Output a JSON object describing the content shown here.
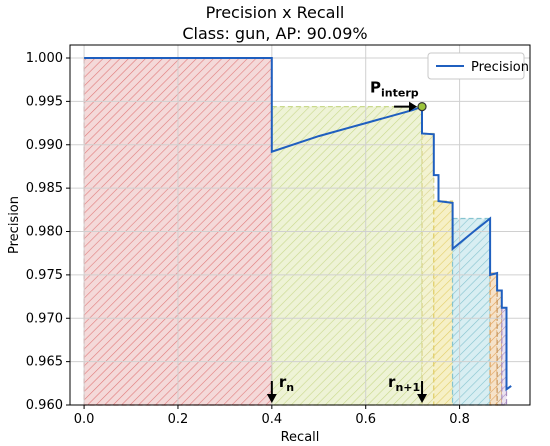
{
  "chart_data": {
    "type": "line",
    "title": "Precision x Recall",
    "subtitle": "Class: gun, AP: 90.09%",
    "xlabel": "Recall",
    "ylabel": "Precision",
    "xlim": [
      -0.03,
      0.95
    ],
    "ylim": [
      0.96,
      1.0015
    ],
    "xticks": [
      0.0,
      0.2,
      0.4,
      0.6,
      0.8
    ],
    "xtick_labels": [
      "0.0",
      "0.2",
      "0.4",
      "0.6",
      "0.8"
    ],
    "yticks": [
      0.96,
      0.965,
      0.97,
      0.975,
      0.98,
      0.985,
      0.99,
      0.995,
      1.0
    ],
    "ytick_labels": [
      "0.960",
      "0.965",
      "0.970",
      "0.975",
      "0.980",
      "0.985",
      "0.990",
      "0.995",
      "1.000"
    ],
    "grid": true,
    "legend_position": "top-right",
    "series": [
      {
        "name": "Precision",
        "color": "#1f5fbf",
        "x": [
          0.0,
          0.4,
          0.4,
          0.5,
          0.6,
          0.7,
          0.72,
          0.72,
          0.745,
          0.745,
          0.755,
          0.755,
          0.785,
          0.785,
          0.83,
          0.865,
          0.865,
          0.88,
          0.88,
          0.89,
          0.89,
          0.9,
          0.9,
          0.91
        ],
        "y": [
          1.0,
          1.0,
          0.9892,
          0.991,
          0.9925,
          0.994,
          0.9944,
          0.9913,
          0.9912,
          0.9865,
          0.9865,
          0.9835,
          0.9833,
          0.978,
          0.98,
          0.9815,
          0.975,
          0.9752,
          0.9732,
          0.9732,
          0.9712,
          0.9712,
          0.9618,
          0.9622
        ]
      }
    ],
    "interpolated_regions": [
      {
        "x0": 0.0,
        "x1": 0.4,
        "y": 1.0,
        "fill": "#f4d9d9",
        "hatch": "#e07a7a"
      },
      {
        "x0": 0.4,
        "x1": 0.72,
        "y": 0.9944,
        "fill": "#eef3d6",
        "hatch": "#c9d98c"
      },
      {
        "x0": 0.72,
        "x1": 0.745,
        "y": 0.9913,
        "fill": "#f3f3d2",
        "hatch": "#d8d48c"
      },
      {
        "x0": 0.745,
        "x1": 0.785,
        "y": 0.9835,
        "fill": "#f6f0c6",
        "hatch": "#e2cf6a"
      },
      {
        "x0": 0.785,
        "x1": 0.865,
        "y": 0.9815,
        "fill": "#d8eef2",
        "hatch": "#86c4cf"
      },
      {
        "x0": 0.865,
        "x1": 0.88,
        "y": 0.9752,
        "fill": "#f6e2c9",
        "hatch": "#e0a25a"
      },
      {
        "x0": 0.88,
        "x1": 0.89,
        "y": 0.9732,
        "fill": "#f1e6d6",
        "hatch": "#c9955a"
      },
      {
        "x0": 0.89,
        "x1": 0.9,
        "y": 0.9712,
        "fill": "#ece3f0",
        "hatch": "#a78cc0"
      }
    ],
    "annotations": {
      "p_interp": {
        "main": "P",
        "sub": "interp",
        "x": 0.72,
        "y": 0.9944
      },
      "r_n": {
        "main": "r",
        "sub": "n",
        "x": 0.4
      },
      "r_n1": {
        "main": "r",
        "sub": "n+1",
        "x": 0.72
      }
    }
  }
}
